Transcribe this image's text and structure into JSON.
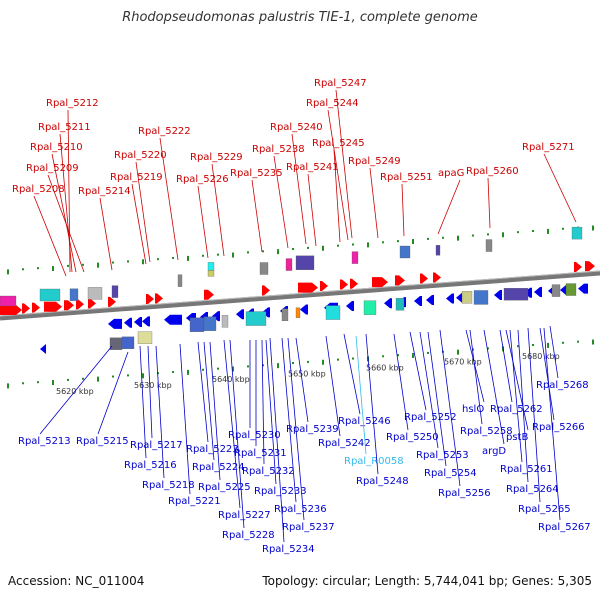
{
  "title": "Rhodopseudomonas palustris TIE-1, complete genome",
  "footer": {
    "accession": "Accession: NC_011004",
    "topology": "Topology: circular; Length: 5,744,041 bp; Genes: 5,305"
  },
  "colors": {
    "forward_label": "#cc0000",
    "reverse_label": "#0000cc",
    "rna_label": "#33bbee",
    "backbone": "#777777",
    "tick": "#228b22"
  },
  "scale_labels": [
    "5620 kbp",
    "5630 kbp",
    "5640 kbp",
    "5650 kbp",
    "5660 kbp",
    "5670 kbp",
    "5680 kbp"
  ],
  "top_labels": [
    "Rpal_5212",
    "Rpal_5211",
    "Rpal_5210",
    "Rpal_5209",
    "Rpal_5208",
    "Rpal_5214",
    "Rpal_5222",
    "Rpal_5220",
    "Rpal_5219",
    "Rpal_5229",
    "Rpal_5226",
    "Rpal_5247",
    "Rpal_5244",
    "Rpal_5240",
    "Rpal_5238",
    "Rpal_5235",
    "Rpal_5245",
    "Rpal_5241",
    "Rpal_5249",
    "Rpal_5251",
    "apaG",
    "Rpal_5260",
    "Rpal_5271"
  ],
  "bottom_labels": [
    "Rpal_5213",
    "Rpal_5215",
    "Rpal_5217",
    "Rpal_5216",
    "Rpal_5218",
    "Rpal_5221",
    "Rpal_5223",
    "Rpal_5224",
    "Rpal_5225",
    "Rpal_5227",
    "Rpal_5228",
    "Rpal_5230",
    "Rpal_5231",
    "Rpal_5232",
    "Rpal_5233",
    "Rpal_5234",
    "Rpal_5236",
    "Rpal_5237",
    "Rpal_5239",
    "Rpal_5242",
    "Rpal_5246",
    "Rpal_R0058",
    "Rpal_5248",
    "Rpal_5250",
    "Rpal_5252",
    "Rpal_5253",
    "Rpal_5254",
    "Rpal_5256",
    "hslO",
    "Rpal_5258",
    "argD",
    "Rpal_5262",
    "pstB",
    "Rpal_5261",
    "Rpal_5264",
    "Rpal_5265",
    "Rpal_5266",
    "Rpal_5267",
    "Rpal_5268"
  ]
}
